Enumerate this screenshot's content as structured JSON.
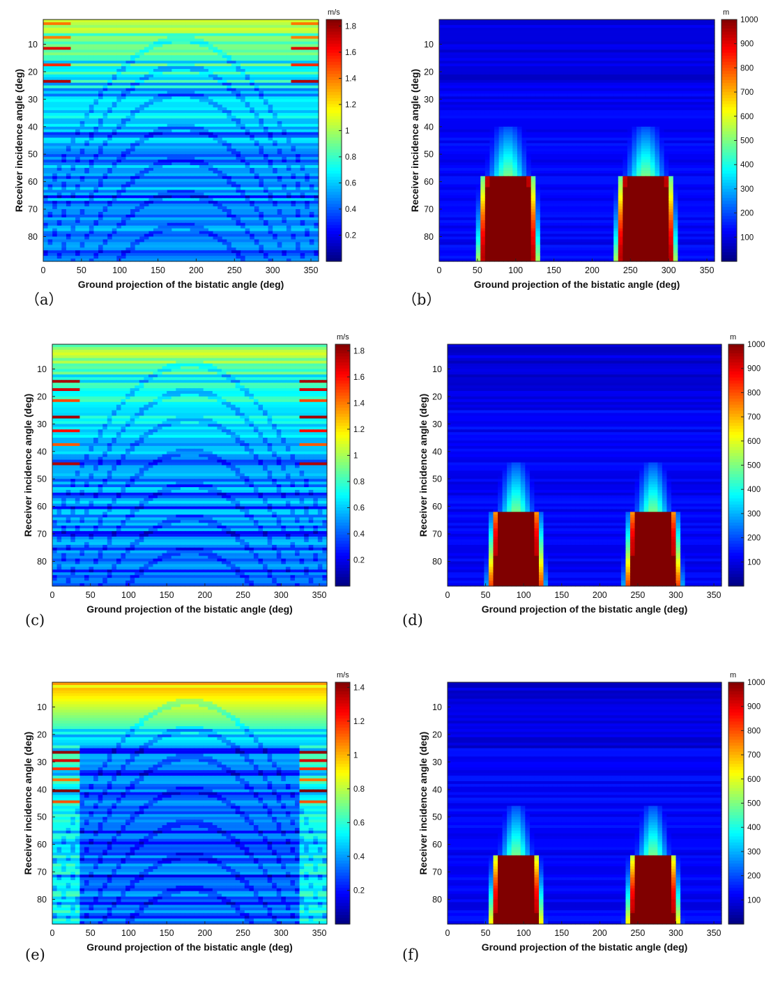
{
  "chart_data": [
    {
      "id": "a",
      "type": "heatmap",
      "caption": "（a）",
      "xlabel": "Ground projection of the bistatic angle (deg)",
      "ylabel": "Receiver incidence angle (deg)",
      "xlim": [
        0,
        360
      ],
      "ylim": [
        1,
        89
      ],
      "y_reversed": true,
      "xticks": [
        0,
        50,
        100,
        150,
        200,
        250,
        300,
        350
      ],
      "yticks": [
        10,
        20,
        30,
        40,
        50,
        60,
        70,
        80
      ],
      "colorbar": {
        "unit": "m/s",
        "min": 0,
        "max": 1.85,
        "colormap": "jet",
        "ticks": [
          "0.2",
          "0.4",
          "0.6",
          "0.8",
          "1",
          "1.2",
          "1.4",
          "1.6",
          "1.8"
        ],
        "tick_values": [
          0.2,
          0.4,
          0.6,
          0.8,
          1.0,
          1.2,
          1.4,
          1.6,
          1.8
        ]
      },
      "pattern": {
        "kind": "velocity",
        "top_hot_rows": [
          3,
          8,
          12,
          18,
          24
        ],
        "edge_hot_width": 38,
        "band_levels": [
          0.55,
          0.45,
          0.36,
          0.28,
          0.2,
          0.14
        ]
      }
    },
    {
      "id": "b",
      "type": "heatmap",
      "caption": "（b）",
      "xlabel": "Ground projection of the bistatic angle (deg)",
      "ylabel": "Receiver incidence angle (deg)",
      "xlim": [
        0,
        360
      ],
      "ylim": [
        1,
        89
      ],
      "y_reversed": true,
      "xticks": [
        0,
        50,
        100,
        150,
        200,
        250,
        300,
        350
      ],
      "yticks": [
        10,
        20,
        30,
        40,
        50,
        60,
        70,
        80
      ],
      "colorbar": {
        "unit": "m",
        "min": 0,
        "max": 1000,
        "colormap": "jet",
        "ticks": [
          "100",
          "200",
          "300",
          "400",
          "500",
          "600",
          "700",
          "800",
          "900",
          "1000"
        ],
        "tick_values": [
          100,
          200,
          300,
          400,
          500,
          600,
          700,
          800,
          900,
          1000
        ]
      },
      "pattern": {
        "kind": "distance",
        "lobe_centers": [
          90,
          270
        ],
        "lobe_top": 58,
        "lobe_half_width_top": 22,
        "lobe_half_width_bottom": 33
      }
    },
    {
      "id": "c",
      "type": "heatmap",
      "caption": "(c)",
      "xlabel": "Ground projection of the bistatic angle (deg)",
      "ylabel": "Receiver incidence angle (deg)",
      "xlim": [
        0,
        360
      ],
      "ylim": [
        1,
        89
      ],
      "y_reversed": true,
      "xticks": [
        0,
        50,
        100,
        150,
        200,
        250,
        300,
        350
      ],
      "yticks": [
        10,
        20,
        30,
        40,
        50,
        60,
        70,
        80
      ],
      "colorbar": {
        "unit": "m/s",
        "min": 0,
        "max": 1.85,
        "colormap": "jet",
        "ticks": [
          "0.2",
          "0.4",
          "0.6",
          "0.8",
          "1",
          "1.2",
          "1.4",
          "1.6",
          "1.8"
        ],
        "tick_values": [
          0.2,
          0.4,
          0.6,
          0.8,
          1.0,
          1.2,
          1.4,
          1.6,
          1.8
        ]
      },
      "pattern": {
        "kind": "velocity",
        "top_hot_rows": [
          15,
          18,
          22,
          28,
          33,
          38,
          45
        ],
        "edge_hot_width": 38,
        "band_levels": [
          0.62,
          0.5,
          0.4,
          0.3,
          0.22,
          0.15
        ]
      }
    },
    {
      "id": "d",
      "type": "heatmap",
      "caption": "(d)",
      "xlabel": "Ground projection of the bistatic angle (deg)",
      "ylabel": "Receiver incidence angle (deg)",
      "xlim": [
        0,
        360
      ],
      "ylim": [
        1,
        89
      ],
      "y_reversed": true,
      "xticks": [
        0,
        50,
        100,
        150,
        200,
        250,
        300,
        350
      ],
      "yticks": [
        10,
        20,
        30,
        40,
        50,
        60,
        70,
        80
      ],
      "colorbar": {
        "unit": "m",
        "min": 0,
        "max": 1000,
        "colormap": "jet",
        "ticks": [
          "100",
          "200",
          "300",
          "400",
          "500",
          "600",
          "700",
          "800",
          "900",
          "1000"
        ],
        "tick_values": [
          100,
          200,
          300,
          400,
          500,
          600,
          700,
          800,
          900,
          1000
        ]
      },
      "pattern": {
        "kind": "distance",
        "lobe_centers": [
          90,
          270
        ],
        "lobe_top": 62,
        "lobe_half_width_top": 18,
        "lobe_half_width_bottom": 30
      }
    },
    {
      "id": "e",
      "type": "heatmap",
      "caption": "(e)",
      "xlabel": "Ground projection of the bistatic angle (deg)",
      "ylabel": "Receiver incidence angle (deg)",
      "xlim": [
        0,
        360
      ],
      "ylim": [
        1,
        89
      ],
      "y_reversed": true,
      "xticks": [
        0,
        50,
        100,
        150,
        200,
        250,
        300,
        350
      ],
      "yticks": [
        10,
        20,
        30,
        40,
        50,
        60,
        70,
        80
      ],
      "colorbar": {
        "unit": "m/s",
        "min": 0,
        "max": 1.43,
        "colormap": "jet",
        "ticks": [
          "0.2",
          "0.4",
          "0.6",
          "0.8",
          "1",
          "1.2",
          "1.4"
        ],
        "tick_values": [
          0.2,
          0.4,
          0.6,
          0.8,
          1.0,
          1.2,
          1.4
        ]
      },
      "pattern": {
        "kind": "velocity-top",
        "top_hot_rows": [
          27,
          30,
          33,
          37,
          41,
          45
        ],
        "edge_hot_width": 38,
        "band_levels": [
          0.5,
          0.4,
          0.32,
          0.25,
          0.18,
          0.12
        ]
      }
    },
    {
      "id": "f",
      "type": "heatmap",
      "caption": "(f)",
      "xlabel": "Ground projection of the bistatic angle (deg)",
      "ylabel": "Receiver incidence angle (deg)",
      "xlim": [
        0,
        360
      ],
      "ylim": [
        1,
        89
      ],
      "y_reversed": true,
      "xticks": [
        0,
        50,
        100,
        150,
        200,
        250,
        300,
        350
      ],
      "yticks": [
        10,
        20,
        30,
        40,
        50,
        60,
        70,
        80
      ],
      "colorbar": {
        "unit": "m",
        "min": 0,
        "max": 1000,
        "colormap": "jet",
        "ticks": [
          "100",
          "200",
          "300",
          "400",
          "500",
          "600",
          "700",
          "800",
          "900",
          "1000"
        ],
        "tick_values": [
          100,
          200,
          300,
          400,
          500,
          600,
          700,
          800,
          900,
          1000
        ]
      },
      "pattern": {
        "kind": "distance",
        "lobe_centers": [
          90,
          270
        ],
        "lobe_top": 64,
        "lobe_half_width_top": 16,
        "lobe_half_width_bottom": 28
      }
    }
  ]
}
